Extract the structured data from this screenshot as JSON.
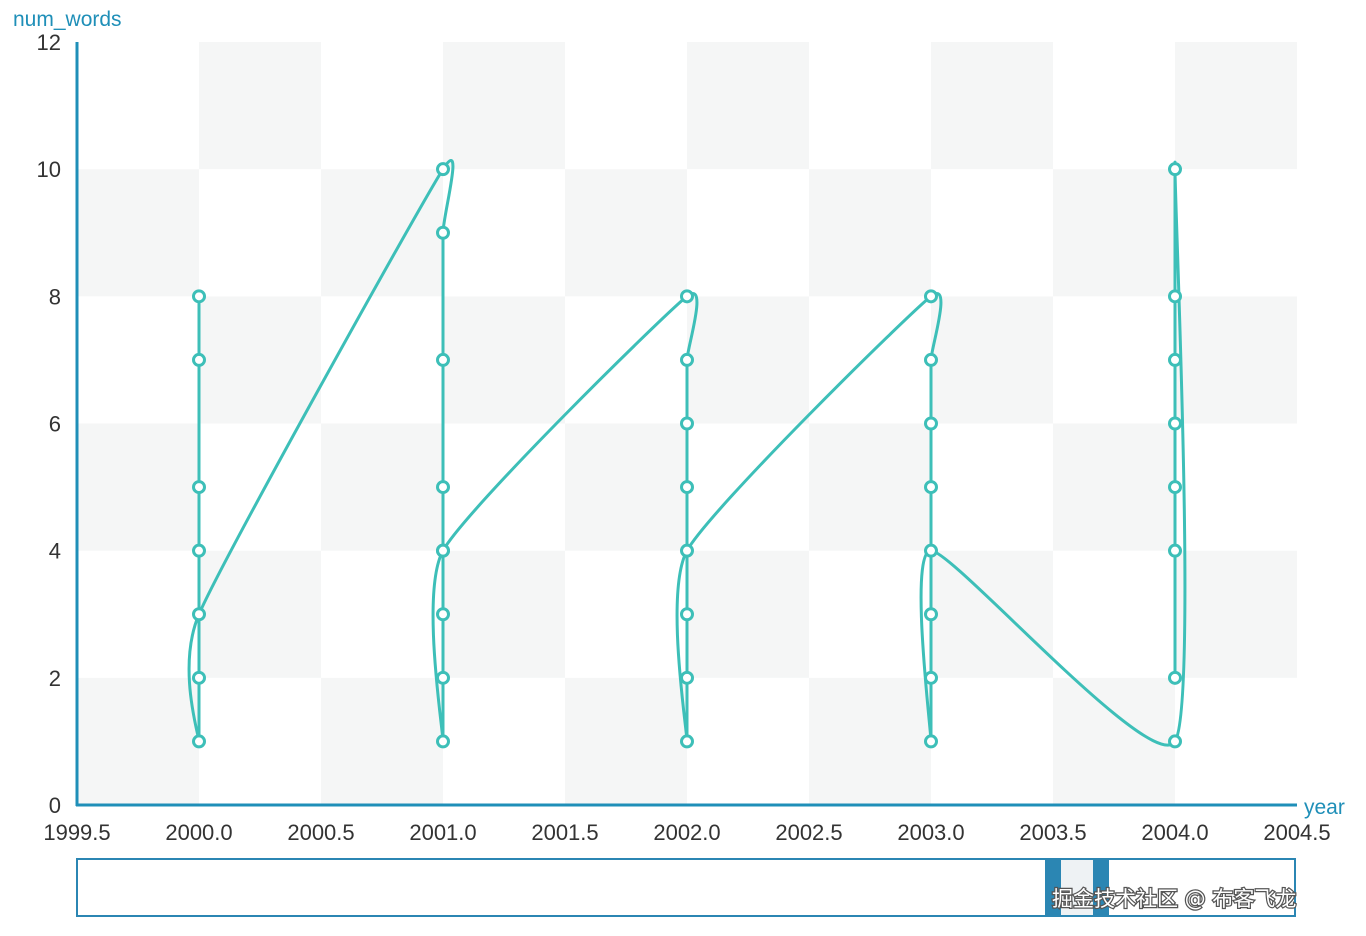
{
  "chart_data": {
    "type": "line",
    "xlabel": "year",
    "ylabel": "num_words",
    "xlim": [
      1999.5,
      2004.5
    ],
    "ylim": [
      0,
      12
    ],
    "x_ticks": [
      1999.5,
      2000.0,
      2000.5,
      2001.0,
      2001.5,
      2002.0,
      2002.5,
      2003.0,
      2003.5,
      2004.0,
      2004.5
    ],
    "x_tick_labels": [
      "1999.5",
      "2000.0",
      "2000.5",
      "2001.0",
      "2001.5",
      "2002.0",
      "2002.5",
      "2003.0",
      "2003.5",
      "2004.0",
      "2004.5"
    ],
    "y_ticks": [
      0,
      2,
      4,
      6,
      8,
      10,
      12
    ],
    "y_tick_labels": [
      "0",
      "2",
      "4",
      "6",
      "8",
      "10",
      "12"
    ],
    "grid": "alternating bands",
    "smooth": true,
    "series": [
      {
        "x": [
          2000,
          2000,
          2000,
          2000,
          2000,
          2000,
          2000,
          2001,
          2001,
          2001,
          2001,
          2001,
          2001,
          2001,
          2001,
          2001,
          2002,
          2002,
          2002,
          2002,
          2002,
          2002,
          2002,
          2002,
          2003,
          2003,
          2003,
          2003,
          2003,
          2003,
          2003,
          2003,
          2004,
          2004,
          2004,
          2004,
          2004,
          2004,
          2004,
          2004
        ],
        "y": [
          8,
          7,
          5,
          4,
          2,
          1,
          3,
          10,
          9,
          7,
          5,
          4,
          3,
          2,
          1,
          4,
          8,
          7,
          6,
          5,
          3,
          2,
          1,
          4,
          8,
          7,
          6,
          5,
          3,
          2,
          1,
          4,
          1,
          10,
          8,
          7,
          6,
          5,
          4,
          2
        ]
      }
    ],
    "colors": {
      "line": "#3dbfb8",
      "axis": "#1f8fb8",
      "band": "#f5f6f6",
      "slider_handle": "#2b86b3"
    }
  },
  "watermark": "掘金技术社区 @ 布客飞龙"
}
